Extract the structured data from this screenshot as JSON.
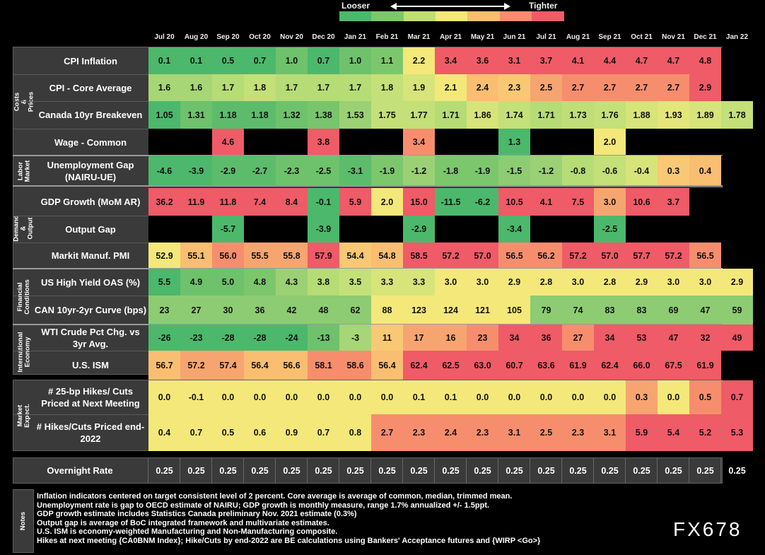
{
  "legend": {
    "looser": "Looser",
    "tighter": "Tighter",
    "swatches": [
      "#4cb86b",
      "#7cc76c",
      "#bfde78",
      "#f4e87a",
      "#f9be72",
      "#f68e6e",
      "#ef5b67"
    ]
  },
  "months": [
    "Jul 20",
    "Aug 20",
    "Sep 20",
    "Oct 20",
    "Nov 20",
    "Dec 20",
    "Jan 21",
    "Feb 21",
    "Mar 21",
    "Apr 21",
    "May 21",
    "Jun 21",
    "Jul 21",
    "Aug 21",
    "Sep 21",
    "Oct 21",
    "Nov 21",
    "Dec 21",
    "Jan 22"
  ],
  "sections": [
    {
      "label": "Costs & Prices"
    },
    {
      "label": "Labor Market"
    },
    {
      "label": "Demand & Output"
    },
    {
      "label": "Financial Conditions"
    },
    {
      "label": "International Economy"
    },
    {
      "label": "Market Expect."
    }
  ],
  "overnight": {
    "label": "Overnight Rate",
    "values": [
      "0.25",
      "0.25",
      "0.25",
      "0.25",
      "0.25",
      "0.25",
      "0.25",
      "0.25",
      "0.25",
      "0.25",
      "0.25",
      "0.25",
      "0.25",
      "0.25",
      "0.25",
      "0.25",
      "0.25",
      "0.25",
      "0.25"
    ]
  },
  "notes_label": "Notes",
  "notes": [
    "Inflation indicators centered on target consistent level of 2 percent. Core average is average of common, median, trimmed mean.",
    "Unemployment rate is gap to OECD estimate of NAIRU; GDP growth is monthly measure, range 1.7% annualized +/- 1.5ppt.",
    "GDP growth estimate includes Statistics Canada preliminary Nov. 2021 estimate (0.3%)",
    "Output gap is average of BoC integrated framework and multivariate estimates.",
    "U.S. ISM is economy-weighted Manufacturing and Non-Manufacturing composite.",
    "Hikes at next meeting {CA0BNM Index}; Hike/Cuts by end-2022 are BE calculations using Bankers' Acceptance futures and {WIRP <Go>}"
  ],
  "watermark": "FX678",
  "chart_data": {
    "type": "heatmap",
    "x": [
      "Jul 20",
      "Aug 20",
      "Sep 20",
      "Oct 20",
      "Nov 20",
      "Dec 20",
      "Jan 21",
      "Feb 21",
      "Mar 21",
      "Apr 21",
      "May 21",
      "Jun 21",
      "Jul 21",
      "Aug 21",
      "Sep 21",
      "Oct 21",
      "Nov 21",
      "Dec 21",
      "Jan 22"
    ],
    "color_scale": {
      "low": "Looser",
      "high": "Tighter"
    },
    "rows": [
      {
        "label": "CPI Inflation",
        "section": "Costs & Prices",
        "values": [
          "0.1",
          "0.1",
          "0.5",
          "0.7",
          "1.0",
          "0.7",
          "1.0",
          "1.1",
          "2.2",
          "3.4",
          "3.6",
          "3.1",
          "3.7",
          "4.1",
          "4.4",
          "4.7",
          "4.7",
          "4.8",
          ""
        ],
        "colors": [
          "#4cb86b",
          "#4cb86b",
          "#4cb86b",
          "#4cb86b",
          "#6ec26c",
          "#4cb86b",
          "#6ec26c",
          "#7cc76c",
          "#f4e87a",
          "#ef5b67",
          "#ef5b67",
          "#ef5b67",
          "#ef5b67",
          "#ef5b67",
          "#ef5b67",
          "#ef5b67",
          "#ef5b67",
          "#ef5b67",
          ""
        ]
      },
      {
        "label": "CPI - Core Average",
        "section": "Costs & Prices",
        "values": [
          "1.6",
          "1.6",
          "1.7",
          "1.8",
          "1.7",
          "1.7",
          "1.7",
          "1.8",
          "1.9",
          "2.1",
          "2.4",
          "2.3",
          "2.5",
          "2.7",
          "2.7",
          "2.7",
          "2.7",
          "2.9",
          ""
        ],
        "colors": [
          "#a6d676",
          "#a6d676",
          "#b6dc76",
          "#c4e078",
          "#b6dc76",
          "#b6dc76",
          "#b6dc76",
          "#c4e078",
          "#d6e47a",
          "#f4e87a",
          "#f9be72",
          "#f9c874",
          "#f7a570",
          "#f68e6e",
          "#f68e6e",
          "#f68e6e",
          "#f68e6e",
          "#ef5b67",
          ""
        ]
      },
      {
        "label": "Canada 10yr Breakeven",
        "section": "Costs & Prices",
        "values": [
          "1.05",
          "1.31",
          "1.18",
          "1.18",
          "1.32",
          "1.38",
          "1.53",
          "1.75",
          "1.77",
          "1.71",
          "1.86",
          "1.74",
          "1.71",
          "1.73",
          "1.76",
          "1.88",
          "1.93",
          "1.89",
          "1.78"
        ],
        "colors": [
          "#4cb86b",
          "#6ec26c",
          "#5cbc6b",
          "#5cbc6b",
          "#6ec26c",
          "#78c56c",
          "#9bd174",
          "#c4e078",
          "#c4e078",
          "#b6dc76",
          "#d6e47a",
          "#c4e078",
          "#b6dc76",
          "#bfde78",
          "#c4e078",
          "#d6e47a",
          "#e4e67a",
          "#d6e47a",
          "#c4e078"
        ]
      },
      {
        "label": "Wage - Common",
        "section": "Costs & Prices",
        "values": [
          "",
          "",
          "4.6",
          "",
          "",
          "3.8",
          "",
          "",
          "3.4",
          "",
          "",
          "1.3",
          "",
          "",
          "2.0",
          "",
          "",
          "",
          ""
        ],
        "colors": [
          "",
          "",
          "#ef5b67",
          "",
          "",
          "#ef5b67",
          "",
          "",
          "#f68e6e",
          "",
          "",
          "#4cb86b",
          "",
          "",
          "#f4e87a",
          "",
          "",
          "",
          ""
        ]
      },
      {
        "label": "Unemployment Gap (NAIRU-UE)",
        "section": "Labor Market",
        "values": [
          "-4.6",
          "-3.9",
          "-2.9",
          "-2.7",
          "-2.3",
          "-2.5",
          "-3.1",
          "-1.9",
          "-1.2",
          "-1.8",
          "-1.9",
          "-1.5",
          "-1.2",
          "-0.8",
          "-0.6",
          "-0.4",
          "0.3",
          "0.4",
          ""
        ],
        "colors": [
          "#4cb86b",
          "#4cb86b",
          "#5cbc6b",
          "#5cbc6b",
          "#6ec26c",
          "#6ec26c",
          "#5cbc6b",
          "#7cc76c",
          "#9bd174",
          "#7cc76c",
          "#7cc76c",
          "#8dcc72",
          "#9bd174",
          "#b6dc76",
          "#c4e078",
          "#d6e47a",
          "#f9c874",
          "#f9be72",
          ""
        ]
      },
      {
        "label": "GDP Growth (MoM AR)",
        "section": "Demand & Output",
        "values": [
          "36.2",
          "11.9",
          "11.8",
          "7.4",
          "8.4",
          "-0.1",
          "5.9",
          "2.0",
          "15.0",
          "-11.5",
          "-6.2",
          "10.5",
          "4.1",
          "7.5",
          "3.0",
          "10.6",
          "3.7",
          "",
          ""
        ],
        "colors": [
          "#ef5b67",
          "#ef5b67",
          "#ef5b67",
          "#ef5b67",
          "#ef5b67",
          "#4cb86b",
          "#ef5b67",
          "#f4e87a",
          "#ef5b67",
          "#4cb86b",
          "#4cb86b",
          "#ef5b67",
          "#ef5b67",
          "#ef5b67",
          "#f7a570",
          "#ef5b67",
          "#ef5b67",
          "",
          ""
        ]
      },
      {
        "label": "Output Gap",
        "section": "Demand & Output",
        "values": [
          "",
          "",
          "-5.7",
          "",
          "",
          "-3.9",
          "",
          "",
          "-2.9",
          "",
          "",
          "-3.4",
          "",
          "",
          "-2.5",
          "",
          "",
          "",
          ""
        ],
        "colors": [
          "",
          "",
          "#4cb86b",
          "",
          "",
          "#4cb86b",
          "",
          "",
          "#4cb86b",
          "",
          "",
          "#4cb86b",
          "",
          "",
          "#4cb86b",
          "",
          "",
          "",
          ""
        ]
      },
      {
        "label": "Markit Manuf. PMI",
        "section": "Demand & Output",
        "values": [
          "52.9",
          "55.1",
          "56.0",
          "55.5",
          "55.8",
          "57.9",
          "54.4",
          "54.8",
          "58.5",
          "57.2",
          "57.0",
          "56.5",
          "56.2",
          "57.2",
          "57.0",
          "57.7",
          "57.2",
          "56.5",
          ""
        ],
        "colors": [
          "#f4e87a",
          "#f9be72",
          "#f68e6e",
          "#f7a570",
          "#f7a570",
          "#ef5b67",
          "#f9c874",
          "#f9be72",
          "#ef5b67",
          "#ef5b67",
          "#ef5b67",
          "#f68e6e",
          "#f68e6e",
          "#ef5b67",
          "#ef5b67",
          "#ef5b67",
          "#ef5b67",
          "#f68e6e",
          ""
        ]
      },
      {
        "label": "US High Yield OAS (%)",
        "section": "Financial Conditions",
        "values": [
          "5.5",
          "4.9",
          "5.0",
          "4.8",
          "4.3",
          "3.8",
          "3.5",
          "3.3",
          "3.3",
          "3.0",
          "3.0",
          "2.9",
          "2.8",
          "3.0",
          "2.8",
          "2.9",
          "3.0",
          "3.0",
          "2.9"
        ],
        "colors": [
          "#4cb86b",
          "#6ec26c",
          "#6ec26c",
          "#7cc76c",
          "#9bd174",
          "#b6dc76",
          "#c4e078",
          "#d6e47a",
          "#d6e47a",
          "#f4e87a",
          "#f4e87a",
          "#f4e87a",
          "#f4e87a",
          "#f4e87a",
          "#f4e87a",
          "#f4e87a",
          "#f4e87a",
          "#f4e87a",
          "#f4e87a"
        ]
      },
      {
        "label": "CAN 10yr-2yr Curve (bps)",
        "section": "Financial Conditions",
        "values": [
          "23",
          "27",
          "30",
          "36",
          "42",
          "48",
          "62",
          "88",
          "123",
          "124",
          "121",
          "105",
          "79",
          "74",
          "83",
          "83",
          "69",
          "47",
          "59"
        ],
        "colors": [
          "#8dcc72",
          "#8dcc72",
          "#8dcc72",
          "#8dcc72",
          "#8dcc72",
          "#8dcc72",
          "#8dcc72",
          "#f4e87a",
          "#f4e87a",
          "#f4e87a",
          "#f4e87a",
          "#f4e87a",
          "#8dcc72",
          "#8dcc72",
          "#8dcc72",
          "#8dcc72",
          "#8dcc72",
          "#8dcc72",
          "#8dcc72"
        ]
      },
      {
        "label": "WTI Crude Pct Chg. vs 3yr Avg.",
        "section": "International Economy",
        "values": [
          "-26",
          "-23",
          "-28",
          "-28",
          "-24",
          "-13",
          "-3",
          "11",
          "17",
          "16",
          "23",
          "34",
          "36",
          "27",
          "34",
          "53",
          "47",
          "32",
          "49"
        ],
        "colors": [
          "#4cb86b",
          "#4cb86b",
          "#4cb86b",
          "#4cb86b",
          "#4cb86b",
          "#6ec26c",
          "#a6d676",
          "#f9c874",
          "#f7a570",
          "#f7a570",
          "#f68e6e",
          "#ef5b67",
          "#ef5b67",
          "#f68e6e",
          "#ef5b67",
          "#ef5b67",
          "#ef5b67",
          "#ef5b67",
          "#ef5b67"
        ]
      },
      {
        "label": "U.S. ISM",
        "section": "International Economy",
        "values": [
          "56.7",
          "57.2",
          "57.4",
          "56.4",
          "56.6",
          "58.1",
          "58.6",
          "56.4",
          "62.4",
          "62.5",
          "63.0",
          "60.7",
          "63.6",
          "61.9",
          "62.4",
          "66.0",
          "67.5",
          "61.9",
          ""
        ],
        "colors": [
          "#f9be72",
          "#f7a570",
          "#f7a570",
          "#f9be72",
          "#f9be72",
          "#f68e6e",
          "#f68e6e",
          "#f9be72",
          "#ef5b67",
          "#ef5b67",
          "#ef5b67",
          "#ef5b67",
          "#ef5b67",
          "#ef5b67",
          "#ef5b67",
          "#ef5b67",
          "#ef5b67",
          "#ef5b67",
          ""
        ]
      },
      {
        "label": "# 25-bp Hikes/ Cuts Priced at Next Meeting",
        "section": "Market Expect.",
        "values": [
          "0.0",
          "-0.1",
          "0.0",
          "0.0",
          "0.0",
          "0.0",
          "0.0",
          "0.0",
          "0.1",
          "0.1",
          "0.0",
          "0.0",
          "0.0",
          "0.0",
          "0.0",
          "0.3",
          "0.0",
          "0.5",
          "0.7"
        ],
        "colors": [
          "#f4e87a",
          "#f4e87a",
          "#f4e87a",
          "#f4e87a",
          "#f4e87a",
          "#f4e87a",
          "#f4e87a",
          "#f4e87a",
          "#f4e87a",
          "#f4e87a",
          "#f4e87a",
          "#f4e87a",
          "#f4e87a",
          "#f4e87a",
          "#f4e87a",
          "#f7a570",
          "#f4e87a",
          "#f68e6e",
          "#ef5b67"
        ]
      },
      {
        "label": "# Hikes/Cuts Priced end-2022",
        "section": "Market Expect.",
        "values": [
          "0.4",
          "0.7",
          "0.5",
          "0.6",
          "0.9",
          "0.7",
          "0.8",
          "2.7",
          "2.3",
          "2.4",
          "2.3",
          "3.1",
          "2.5",
          "2.3",
          "3.1",
          "5.9",
          "5.4",
          "5.2",
          "5.3"
        ],
        "colors": [
          "#f4e87a",
          "#f4e87a",
          "#f4e87a",
          "#f4e87a",
          "#f4e87a",
          "#f4e87a",
          "#f4e87a",
          "#f68e6e",
          "#f68e6e",
          "#f68e6e",
          "#f68e6e",
          "#f68e6e",
          "#f68e6e",
          "#f68e6e",
          "#f68e6e",
          "#ef5b67",
          "#ef5b67",
          "#ef5b67",
          "#ef5b67"
        ]
      }
    ]
  }
}
